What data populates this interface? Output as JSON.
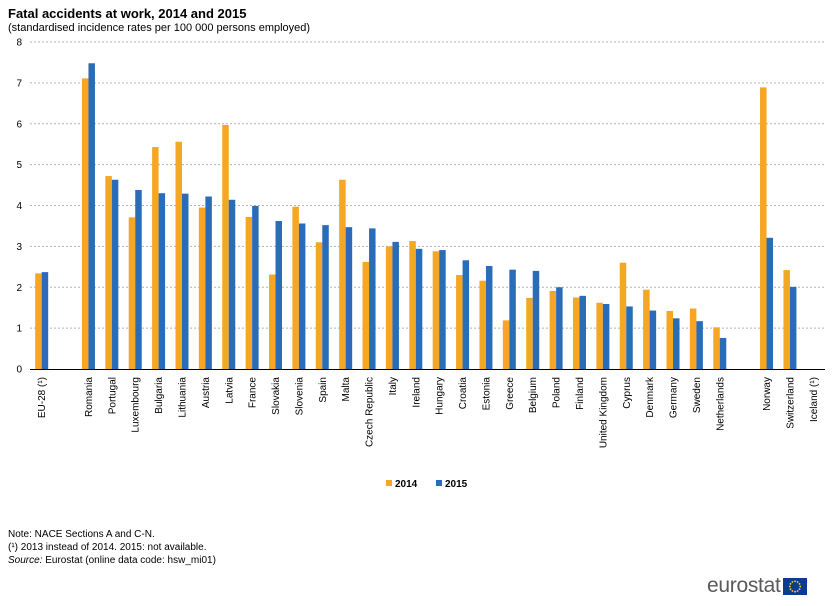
{
  "chart_data": {
    "type": "bar",
    "title": "Fatal accidents at work, 2014 and 2015",
    "subtitle": "(standardised incidence rates per 100 000 persons employed)",
    "ylim": [
      0,
      8
    ],
    "yticks": [
      "0",
      "1",
      "2",
      "3",
      "4",
      "5",
      "6",
      "7",
      "8"
    ],
    "grid": "horizontal dashed",
    "legend_position": "bottom-center",
    "categories": [
      "EU-28 (¹)",
      "Romania",
      "Portugal",
      "Luxembourg",
      "Bulgaria",
      "Lithuania",
      "Austria",
      "Latvia",
      "France",
      "Slovakia",
      "Slovenia",
      "Spain",
      "Malta",
      "Czech Republic",
      "Italy",
      "Ireland",
      "Hungary",
      "Croatia",
      "Estonia",
      "Greece",
      "Belgium",
      "Poland",
      "Finland",
      "United Kingdom",
      "Cyprus",
      "Denmark",
      "Germany",
      "Sweden",
      "Netherlands",
      "Norway",
      "Switzerland",
      "Iceland (¹)"
    ],
    "series": [
      {
        "name": "2014",
        "color": "#f5a623",
        "values": [
          2.34,
          7.11,
          4.72,
          3.71,
          5.43,
          5.56,
          3.95,
          5.97,
          3.72,
          2.31,
          3.97,
          3.1,
          4.63,
          2.62,
          3.0,
          3.13,
          2.88,
          2.3,
          2.16,
          1.19,
          1.74,
          1.91,
          1.75,
          1.62,
          2.6,
          1.94,
          1.42,
          1.48,
          1.02,
          6.89,
          2.42,
          null
        ]
      },
      {
        "name": "2015",
        "color": "#2b6cb8",
        "values": [
          2.37,
          7.48,
          4.63,
          4.38,
          4.3,
          4.29,
          4.22,
          4.14,
          3.99,
          3.62,
          3.56,
          3.52,
          3.47,
          3.44,
          3.11,
          2.94,
          2.91,
          2.66,
          2.52,
          2.43,
          2.4,
          2.0,
          1.79,
          1.59,
          1.53,
          1.43,
          1.24,
          1.17,
          0.76,
          3.21,
          2.01,
          null
        ]
      }
    ]
  },
  "notes": {
    "line1": "Note: NACE Sections A and C-N.",
    "line2": "(¹) 2013 instead of 2014. 2015: not available.",
    "source_label": "Source:",
    "source_text": " Eurostat (online data code: hsw_mi01)"
  },
  "logo": {
    "text": "eurostat",
    "flag_color": "#0a3d91",
    "star_color": "#ffd617"
  }
}
